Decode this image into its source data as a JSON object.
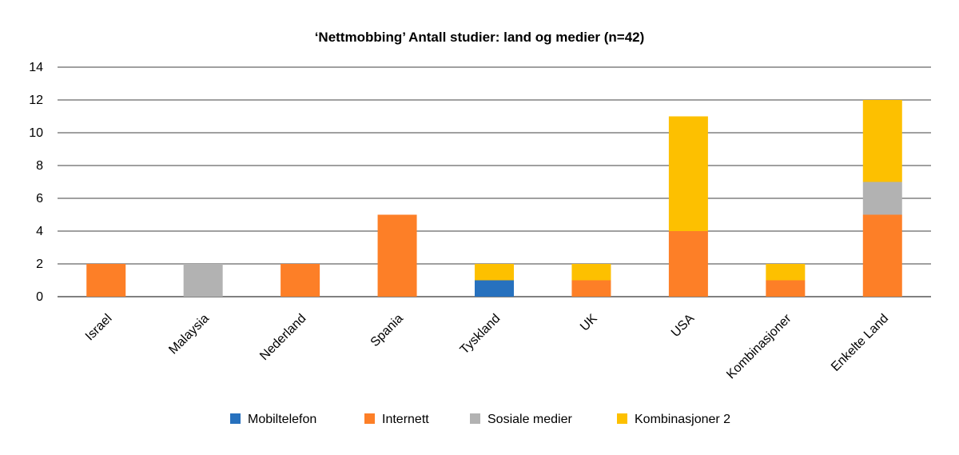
{
  "chart_data": {
    "type": "bar",
    "stacked": true,
    "title": "‘Nettmobbing’ Antall studier: land og medier (n=42)",
    "xlabel": "",
    "ylabel": "",
    "ylim": [
      0,
      14
    ],
    "yticks": [
      0,
      2,
      4,
      6,
      8,
      10,
      12,
      14
    ],
    "grid": true,
    "legend_position": "bottom",
    "categories": [
      "Israel",
      "Malaysia",
      "Nederland",
      "Spania",
      "Tyskland",
      "UK",
      "USA",
      "Kombinasjoner",
      "Enkelte Land"
    ],
    "series": [
      {
        "name": "Mobiltelefon",
        "color": "#2771be",
        "values": [
          0,
          0,
          0,
          0,
          1,
          0,
          0,
          0,
          0
        ]
      },
      {
        "name": "Internett",
        "color": "#fd7f27",
        "values": [
          2,
          0,
          2,
          5,
          0,
          1,
          4,
          1,
          5
        ]
      },
      {
        "name": "Sosiale medier",
        "color": "#b2b2b2",
        "values": [
          0,
          2,
          0,
          0,
          0,
          0,
          0,
          0,
          2
        ]
      },
      {
        "name": "Kombinasjoner 2",
        "color": "#fdc000",
        "values": [
          0,
          0,
          0,
          0,
          1,
          1,
          7,
          1,
          5
        ]
      }
    ]
  }
}
